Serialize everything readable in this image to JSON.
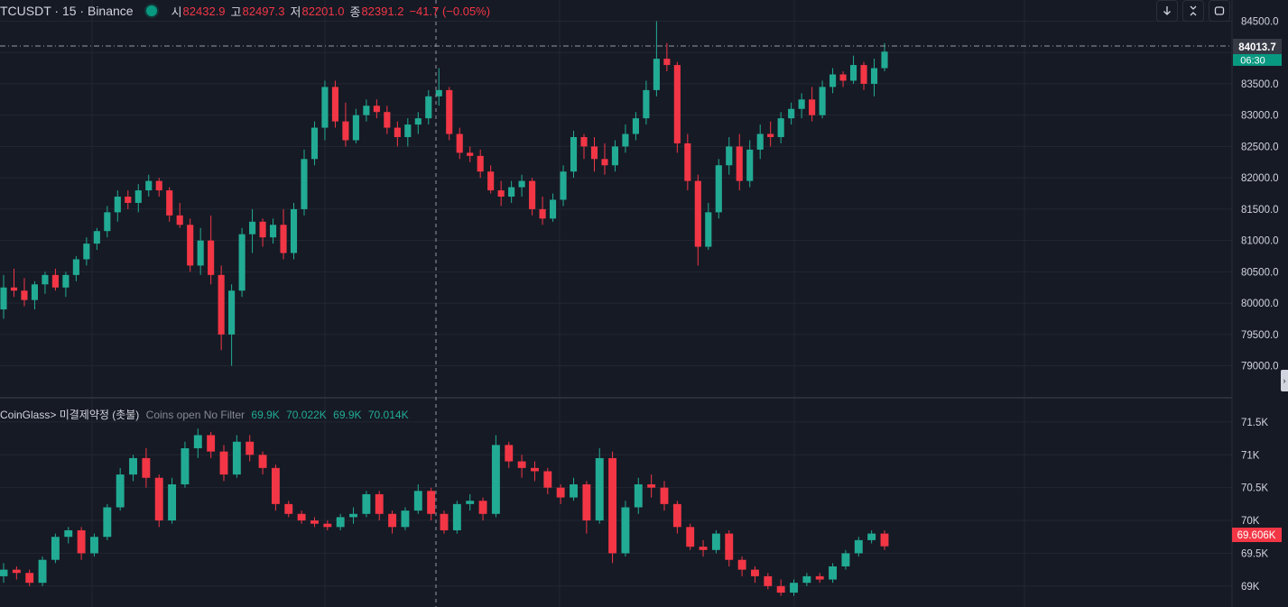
{
  "header": {
    "symbol_title": "TCUSDT · 15 · Binance",
    "market_status": "market-open-dot",
    "ohlc": [
      {
        "label": "시",
        "value": "82432.9"
      },
      {
        "label": "고",
        "value": "82497.3"
      },
      {
        "label": "저",
        "value": "82201.0"
      },
      {
        "label": "종",
        "value": "82391.2"
      }
    ],
    "change": "−41.7 (−0.05%)"
  },
  "toolbar": {
    "icons": [
      "arrow-down-icon",
      "collapse-arrows-icon",
      "fullscreen-icon"
    ]
  },
  "price_pane": {
    "crosshair_price": "84013.7",
    "countdown": "06:30",
    "y_ticks": [
      "84500.0",
      "84000.0",
      "83500.0",
      "83000.0",
      "82500.0",
      "82000.0",
      "81500.0",
      "81000.0",
      "80500.0",
      "80000.0",
      "79500.0",
      "79000.0"
    ]
  },
  "indicator_pane": {
    "name": "CoinGlass> 미결제약정 (촛불)",
    "params": "Coins open No Filter",
    "values": [
      "69.9K",
      "70.022K",
      "69.9K",
      "70.014K"
    ],
    "last_value": "69.606K",
    "y_ticks": [
      "71.5K",
      "71K",
      "70.5K",
      "70K",
      "69.5K",
      "69K"
    ]
  },
  "colors": {
    "background": "#161a25",
    "up": "#22ab94",
    "down": "#f23645",
    "grid": "#232733",
    "text": "#d1d4dc",
    "countdown_bg": "#089981"
  },
  "chart_data": [
    {
      "type": "candlestick",
      "title": "TCUSDT · 15 · Binance",
      "ylim": [
        78800,
        84600
      ],
      "y_ticks": [
        84500,
        84000,
        83500,
        83000,
        82500,
        82000,
        81500,
        81000,
        80500,
        80000,
        79500,
        79000
      ],
      "candles": [
        [
          79900,
          80450,
          79750,
          80250
        ],
        [
          80250,
          80550,
          80100,
          80200
        ],
        [
          80200,
          80400,
          79950,
          80050
        ],
        [
          80050,
          80350,
          79900,
          80300
        ],
        [
          80300,
          80500,
          80150,
          80450
        ],
        [
          80450,
          80550,
          80200,
          80250
        ],
        [
          80250,
          80500,
          80100,
          80450
        ],
        [
          80450,
          80750,
          80350,
          80700
        ],
        [
          80700,
          81050,
          80600,
          80950
        ],
        [
          80950,
          81200,
          80850,
          81150
        ],
        [
          81150,
          81550,
          81050,
          81450
        ],
        [
          81450,
          81800,
          81300,
          81700
        ],
        [
          81700,
          81800,
          81500,
          81600
        ],
        [
          81600,
          81900,
          81450,
          81800
        ],
        [
          81800,
          82050,
          81700,
          81950
        ],
        [
          81950,
          82000,
          81700,
          81800
        ],
        [
          81800,
          81850,
          81300,
          81400
        ],
        [
          81400,
          81600,
          81200,
          81250
        ],
        [
          81250,
          81350,
          80500,
          80600
        ],
        [
          80600,
          81200,
          80450,
          81000
        ],
        [
          81000,
          81400,
          80300,
          80450
        ],
        [
          80450,
          80600,
          79250,
          79500
        ],
        [
          79500,
          80300,
          79000,
          80200
        ],
        [
          80200,
          81200,
          80100,
          81100
        ],
        [
          81100,
          81500,
          80800,
          81300
        ],
        [
          81300,
          81350,
          80900,
          81050
        ],
        [
          81050,
          81350,
          80950,
          81250
        ],
        [
          81250,
          81500,
          80700,
          80800
        ],
        [
          80800,
          81600,
          80700,
          81500
        ],
        [
          81500,
          82450,
          81400,
          82300
        ],
        [
          82300,
          82900,
          82200,
          82800
        ],
        [
          82800,
          83550,
          82600,
          83450
        ],
        [
          83450,
          83550,
          82800,
          82900
        ],
        [
          82900,
          83200,
          82500,
          82600
        ],
        [
          82600,
          83100,
          82550,
          83000
        ],
        [
          83000,
          83250,
          82900,
          83150
        ],
        [
          83150,
          83250,
          82950,
          83050
        ],
        [
          83050,
          83150,
          82700,
          82800
        ],
        [
          82800,
          82900,
          82500,
          82650
        ],
        [
          82650,
          82950,
          82500,
          82850
        ],
        [
          82850,
          83050,
          82700,
          82950
        ],
        [
          82950,
          83400,
          82850,
          83300
        ],
        [
          83300,
          83750,
          83150,
          83400
        ],
        [
          83400,
          83450,
          82600,
          82700
        ],
        [
          82700,
          82800,
          82300,
          82400
        ],
        [
          82400,
          82500,
          82250,
          82350
        ],
        [
          82350,
          82450,
          82000,
          82100
        ],
        [
          82100,
          82200,
          81750,
          81800
        ],
        [
          81800,
          81950,
          81550,
          81700
        ],
        [
          81700,
          81950,
          81600,
          81850
        ],
        [
          81850,
          82050,
          81700,
          81950
        ],
        [
          81950,
          82000,
          81400,
          81500
        ],
        [
          81500,
          81700,
          81250,
          81350
        ],
        [
          81350,
          81750,
          81300,
          81650
        ],
        [
          81650,
          82200,
          81550,
          82100
        ],
        [
          82100,
          82750,
          82000,
          82650
        ],
        [
          82650,
          82700,
          82300,
          82500
        ],
        [
          82500,
          82650,
          82100,
          82300
        ],
        [
          82300,
          82550,
          82050,
          82200
        ],
        [
          82200,
          82600,
          82100,
          82500
        ],
        [
          82500,
          82850,
          82400,
          82700
        ],
        [
          82700,
          83050,
          82600,
          82950
        ],
        [
          82950,
          83550,
          82850,
          83400
        ],
        [
          83400,
          84500,
          83300,
          83900
        ],
        [
          83900,
          84150,
          83700,
          83800
        ],
        [
          83800,
          83850,
          82400,
          82550
        ],
        [
          82550,
          82700,
          81800,
          81950
        ],
        [
          81950,
          82050,
          80600,
          80900
        ],
        [
          80900,
          81600,
          80850,
          81450
        ],
        [
          81450,
          82300,
          81350,
          82200
        ],
        [
          82200,
          82650,
          82050,
          82500
        ],
        [
          82500,
          82700,
          81800,
          81950
        ],
        [
          81950,
          82600,
          81850,
          82450
        ],
        [
          82450,
          82850,
          82300,
          82700
        ],
        [
          82700,
          82900,
          82500,
          82650
        ],
        [
          82650,
          83050,
          82550,
          82950
        ],
        [
          82950,
          83200,
          82850,
          83100
        ],
        [
          83100,
          83350,
          82950,
          83250
        ],
        [
          83250,
          83450,
          82900,
          83000
        ],
        [
          83000,
          83550,
          82950,
          83450
        ],
        [
          83450,
          83750,
          83350,
          83650
        ],
        [
          83650,
          83700,
          83450,
          83550
        ],
        [
          83550,
          83950,
          83500,
          83800
        ],
        [
          83800,
          83850,
          83400,
          83500
        ],
        [
          83500,
          83900,
          83300,
          83750
        ],
        [
          83750,
          84150,
          83700,
          84013.7
        ]
      ]
    },
    {
      "type": "candlestick",
      "title": "CoinGlass> 미결제약정 (촛불)",
      "ylim": [
        68750,
        71650
      ],
      "y_ticks": [
        71500,
        71000,
        70500,
        70000,
        69500,
        69000
      ],
      "candles": [
        [
          69150,
          69350,
          69050,
          69250
        ],
        [
          69250,
          69300,
          69100,
          69200
        ],
        [
          69200,
          69250,
          69000,
          69050
        ],
        [
          69050,
          69450,
          69000,
          69400
        ],
        [
          69400,
          69800,
          69350,
          69750
        ],
        [
          69750,
          69900,
          69650,
          69850
        ],
        [
          69850,
          69900,
          69400,
          69500
        ],
        [
          69500,
          69800,
          69450,
          69750
        ],
        [
          69750,
          70250,
          69700,
          70200
        ],
        [
          70200,
          70800,
          70150,
          70700
        ],
        [
          70700,
          71000,
          70600,
          70950
        ],
        [
          70950,
          71100,
          70500,
          70650
        ],
        [
          70650,
          70700,
          69900,
          70000
        ],
        [
          70000,
          70650,
          69950,
          70550
        ],
        [
          70550,
          71200,
          70500,
          71100
        ],
        [
          71100,
          71400,
          70950,
          71300
        ],
        [
          71300,
          71350,
          70950,
          71050
        ],
        [
          71050,
          71150,
          70600,
          70700
        ],
        [
          70700,
          71300,
          70650,
          71200
        ],
        [
          71200,
          71300,
          70900,
          71000
        ],
        [
          71000,
          71050,
          70700,
          70800
        ],
        [
          70800,
          70850,
          70150,
          70250
        ],
        [
          70250,
          70300,
          70050,
          70100
        ],
        [
          70100,
          70150,
          69950,
          70000
        ],
        [
          70000,
          70050,
          69900,
          69950
        ],
        [
          69950,
          70000,
          69850,
          69900
        ],
        [
          69900,
          70100,
          69850,
          70050
        ],
        [
          70050,
          70200,
          69950,
          70100
        ],
        [
          70100,
          70450,
          70050,
          70400
        ],
        [
          70400,
          70450,
          70000,
          70100
        ],
        [
          70100,
          70150,
          69800,
          69900
        ],
        [
          69900,
          70200,
          69850,
          70150
        ],
        [
          70150,
          70550,
          70100,
          70450
        ],
        [
          70450,
          70500,
          70000,
          70100
        ],
        [
          70100,
          70150,
          69800,
          69850
        ],
        [
          69850,
          70300,
          69800,
          70250
        ],
        [
          70250,
          70400,
          70150,
          70300
        ],
        [
          70300,
          70350,
          70000,
          70100
        ],
        [
          70100,
          71300,
          70050,
          71150
        ],
        [
          71150,
          71200,
          70800,
          70900
        ],
        [
          70900,
          71000,
          70650,
          70800
        ],
        [
          70800,
          70900,
          70600,
          70750
        ],
        [
          70750,
          70800,
          70400,
          70500
        ],
        [
          70500,
          70550,
          70250,
          70350
        ],
        [
          70350,
          70650,
          70300,
          70550
        ],
        [
          70550,
          70600,
          69800,
          70000
        ],
        [
          70000,
          71100,
          69950,
          70950
        ],
        [
          70950,
          71050,
          69350,
          69500
        ],
        [
          69500,
          70300,
          69450,
          70200
        ],
        [
          70200,
          70650,
          70100,
          70550
        ],
        [
          70550,
          70700,
          70350,
          70500
        ],
        [
          70500,
          70600,
          70150,
          70250
        ],
        [
          70250,
          70300,
          69800,
          69900
        ],
        [
          69900,
          69950,
          69550,
          69600
        ],
        [
          69600,
          69700,
          69450,
          69550
        ],
        [
          69550,
          69850,
          69500,
          69800
        ],
        [
          69800,
          69850,
          69300,
          69400
        ],
        [
          69400,
          69450,
          69150,
          69250
        ],
        [
          69250,
          69300,
          69050,
          69150
        ],
        [
          69150,
          69200,
          68950,
          69000
        ],
        [
          69000,
          69100,
          68850,
          68900
        ],
        [
          68900,
          69100,
          68850,
          69050
        ],
        [
          69050,
          69200,
          69000,
          69150
        ],
        [
          69150,
          69200,
          69050,
          69100
        ],
        [
          69100,
          69350,
          69050,
          69300
        ],
        [
          69300,
          69550,
          69250,
          69500
        ],
        [
          69500,
          69750,
          69450,
          69700
        ],
        [
          69700,
          69850,
          69650,
          69800
        ],
        [
          69800,
          69850,
          69550,
          69606
        ]
      ]
    }
  ]
}
